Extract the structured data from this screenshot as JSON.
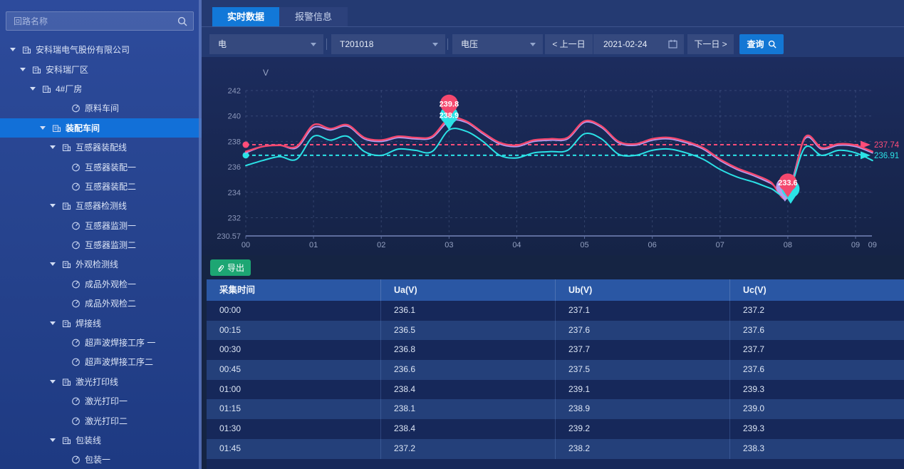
{
  "sidebar": {
    "search_placeholder": "回路名称",
    "tree": [
      {
        "label": "安科瑞电气股份有限公司",
        "level": 0,
        "icon": "building",
        "expandable": true,
        "selected": false
      },
      {
        "label": "安科瑞厂区",
        "level": 1,
        "icon": "building",
        "expandable": true,
        "selected": false
      },
      {
        "label": "4#厂房",
        "level": 2,
        "icon": "building",
        "expandable": true,
        "selected": false
      },
      {
        "label": "原料车间",
        "level": 3,
        "icon": "meter",
        "expandable": false,
        "selected": false
      },
      {
        "label": "装配车间",
        "level": 3,
        "icon": "building",
        "expandable": true,
        "selected": true
      },
      {
        "label": "互感器装配线",
        "level": 4,
        "icon": "building",
        "expandable": true,
        "selected": false
      },
      {
        "label": "互感器装配一",
        "level": 5,
        "icon": "meter",
        "expandable": false,
        "selected": false
      },
      {
        "label": "互感器装配二",
        "level": 5,
        "icon": "meter",
        "expandable": false,
        "selected": false
      },
      {
        "label": "互感器检测线",
        "level": 4,
        "icon": "building",
        "expandable": true,
        "selected": false
      },
      {
        "label": "互感器监测一",
        "level": 5,
        "icon": "meter",
        "expandable": false,
        "selected": false
      },
      {
        "label": "互感器监测二",
        "level": 5,
        "icon": "meter",
        "expandable": false,
        "selected": false
      },
      {
        "label": "外观检测线",
        "level": 4,
        "icon": "building",
        "expandable": true,
        "selected": false
      },
      {
        "label": "成品外观检一",
        "level": 5,
        "icon": "meter",
        "expandable": false,
        "selected": false
      },
      {
        "label": "成品外观检二",
        "level": 5,
        "icon": "meter",
        "expandable": false,
        "selected": false
      },
      {
        "label": "焊接线",
        "level": 4,
        "icon": "building",
        "expandable": true,
        "selected": false
      },
      {
        "label": "超声波焊接工序 一",
        "level": 5,
        "icon": "meter",
        "expandable": false,
        "selected": false
      },
      {
        "label": "超声波焊接工序二",
        "level": 5,
        "icon": "meter",
        "expandable": false,
        "selected": false
      },
      {
        "label": "激光打印线",
        "level": 4,
        "icon": "building",
        "expandable": true,
        "selected": false
      },
      {
        "label": "激光打印一",
        "level": 5,
        "icon": "meter",
        "expandable": false,
        "selected": false
      },
      {
        "label": "激光打印二",
        "level": 5,
        "icon": "meter",
        "expandable": false,
        "selected": false
      },
      {
        "label": "包装线",
        "level": 4,
        "icon": "building",
        "expandable": true,
        "selected": false
      },
      {
        "label": "包装一",
        "level": 5,
        "icon": "meter",
        "expandable": false,
        "selected": false
      }
    ]
  },
  "tabs": [
    {
      "label": "实时数据",
      "active": true
    },
    {
      "label": "报警信息",
      "active": false
    }
  ],
  "filters": {
    "selects": [
      {
        "value": "电"
      },
      {
        "value": "T201018"
      },
      {
        "value": "电压"
      }
    ],
    "prev_day": "< 上一日",
    "date": "2021-02-24",
    "next_day": "下一日 >",
    "query": "查询"
  },
  "legend": {
    "items": [
      {
        "label": "Ua",
        "color": "#2be2e6"
      },
      {
        "label": "Ub",
        "color": "#b49df0"
      },
      {
        "label": "Uc",
        "color": "#f4486e"
      }
    ]
  },
  "chart_data": {
    "type": "line",
    "unit": "V",
    "x_start": "00:00",
    "x_interval_minutes": 15,
    "x_tick_labels": [
      "00",
      "01",
      "02",
      "03",
      "04",
      "05",
      "06",
      "07",
      "08",
      "09",
      "09"
    ],
    "ylim": [
      230.57,
      242
    ],
    "yticks": [
      242,
      240,
      238,
      236,
      234,
      232,
      230.57
    ],
    "series": [
      {
        "name": "Ua",
        "color": "#2be2e6",
        "values": [
          236.1,
          236.5,
          236.8,
          236.6,
          238.4,
          238.1,
          238.4,
          237.2,
          236.9,
          237.4,
          237.3,
          237.2,
          238.9,
          238.8,
          238.0,
          236.9,
          236.7,
          237.1,
          237.2,
          237.3,
          238.6,
          238.2,
          237.0,
          236.9,
          237.3,
          237.4,
          237.1,
          236.6,
          235.8,
          235.2,
          234.8,
          234.3,
          233.9,
          237.5,
          236.9,
          237.3,
          237.1,
          236.5
        ]
      },
      {
        "name": "Ub",
        "color": "#b49df0",
        "values": [
          237.1,
          237.6,
          237.7,
          237.5,
          239.1,
          238.9,
          239.2,
          238.2,
          238.0,
          238.3,
          238.2,
          238.3,
          239.6,
          239.5,
          238.6,
          237.8,
          237.6,
          238.0,
          238.1,
          238.2,
          239.5,
          239.1,
          237.9,
          237.7,
          238.1,
          238.2,
          237.9,
          237.4,
          236.5,
          235.8,
          235.3,
          234.7,
          234.0,
          238.2,
          237.4,
          237.7,
          237.6,
          237.1
        ]
      },
      {
        "name": "Uc",
        "color": "#f4486e",
        "values": [
          237.2,
          237.6,
          237.7,
          237.6,
          239.3,
          239.0,
          239.3,
          238.3,
          238.1,
          238.4,
          238.3,
          238.4,
          239.8,
          239.6,
          238.7,
          237.9,
          237.7,
          238.1,
          238.2,
          238.3,
          239.6,
          239.2,
          238.0,
          237.8,
          238.2,
          238.3,
          238.0,
          237.5,
          236.6,
          235.9,
          235.4,
          234.8,
          233.6,
          238.3,
          237.5,
          237.8,
          237.7,
          237.2
        ]
      }
    ],
    "avg_lines": [
      {
        "series": "Uc",
        "value": 237.74,
        "label": "237.74",
        "color": "#ff4d79"
      },
      {
        "series": "Ua",
        "value": 236.91,
        "label": "236.91",
        "color": "#2be2e6"
      }
    ],
    "markers": [
      {
        "series": "Uc",
        "type": "max",
        "time": "03:00",
        "value": 239.8
      },
      {
        "series": "Ua",
        "type": "max",
        "time": "03:00",
        "value": 238.9
      },
      {
        "series": "Uc",
        "type": "min",
        "time": "08:00",
        "value": 233.6
      }
    ]
  },
  "export_label": "导出",
  "table": {
    "headers": [
      "采集时间",
      "Ua(V)",
      "Ub(V)",
      "Uc(V)"
    ],
    "rows": [
      [
        "00:00",
        "236.1",
        "237.1",
        "237.2"
      ],
      [
        "00:15",
        "236.5",
        "237.6",
        "237.6"
      ],
      [
        "00:30",
        "236.8",
        "237.7",
        "237.7"
      ],
      [
        "00:45",
        "236.6",
        "237.5",
        "237.6"
      ],
      [
        "01:00",
        "238.4",
        "239.1",
        "239.3"
      ],
      [
        "01:15",
        "238.1",
        "238.9",
        "239.0"
      ],
      [
        "01:30",
        "238.4",
        "239.2",
        "239.3"
      ],
      [
        "01:45",
        "237.2",
        "238.2",
        "238.3"
      ]
    ]
  },
  "colors": {
    "accent": "#1377d4",
    "selected_tree": "#1270d8",
    "export_green": "#1da673",
    "ua": "#2be2e6",
    "ub": "#b49df0",
    "uc": "#f4486e",
    "table_header": "#2a57a4"
  }
}
